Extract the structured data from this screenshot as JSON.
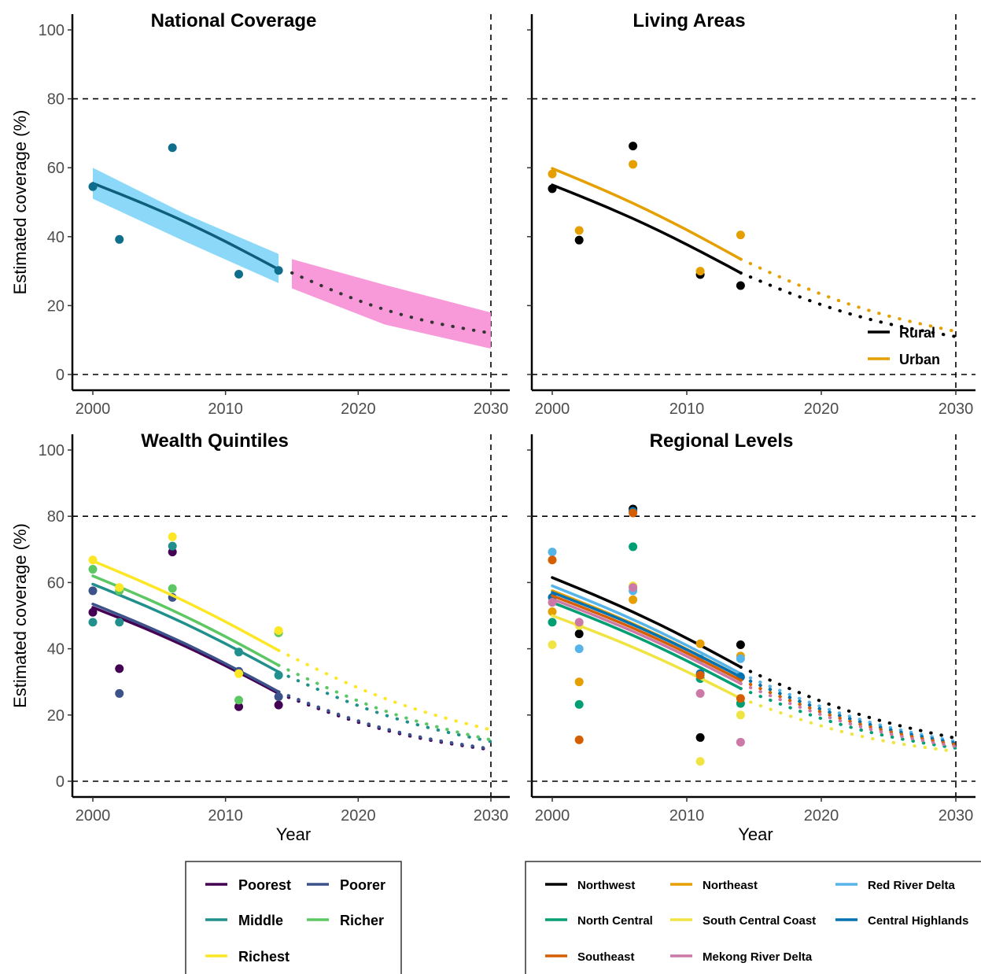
{
  "chart_data": [
    {
      "type": "line",
      "title": "National Coverage",
      "xlabel": "",
      "ylabel": "Estimated coverage (%)",
      "xlim": [
        2000,
        2030
      ],
      "ylim": [
        0,
        100
      ],
      "x_ticks": [
        "2000",
        "2010",
        "2020",
        "2030"
      ],
      "y_ticks": [
        "0",
        "20",
        "40",
        "60",
        "80",
        "100"
      ],
      "reference_lines": {
        "horizontal": [
          0,
          80
        ],
        "vertical": [
          2030
        ]
      },
      "grid": false,
      "colors": {
        "points": "#0e6e8c",
        "fit": "#0e5f7a",
        "fit_band": "#7fd4f7",
        "projection": "#333333",
        "projection_band": "#f78fd6"
      },
      "series": [
        {
          "points": [
            [
              2000,
              54.5
            ],
            [
              2002,
              39.2
            ],
            [
              2006,
              65.8
            ],
            [
              2011,
              29.1
            ],
            [
              2014,
              30.2
            ]
          ],
          "fit": [
            [
              2000,
              55.5
            ],
            [
              2014,
              30.5
            ]
          ],
          "fit_band": [
            [
              2000,
              51.0,
              60.0
            ],
            [
              2007,
              38.5,
              46.5
            ],
            [
              2014,
              26.5,
              35.0
            ]
          ],
          "projection": [
            [
              2015,
              29.5
            ],
            [
              2030,
              12.0
            ]
          ],
          "projection_band": [
            [
              2015,
              25.0,
              33.5
            ],
            [
              2022,
              14.5,
              26.0
            ],
            [
              2030,
              7.5,
              18.0
            ]
          ]
        }
      ]
    },
    {
      "type": "line",
      "title": "Living Areas",
      "xlabel": "",
      "ylabel": "",
      "xlim": [
        2000,
        2030
      ],
      "ylim": [
        0,
        100
      ],
      "x_ticks": [
        "2000",
        "2010",
        "2020",
        "2030"
      ],
      "y_ticks": [],
      "reference_lines": {
        "horizontal": [
          0,
          80
        ],
        "vertical": [
          2030
        ]
      },
      "grid": false,
      "legend_position": "bottom-right",
      "series": [
        {
          "name": "Rural",
          "color": "#000000",
          "points": [
            [
              2000,
              53.9
            ],
            [
              2002,
              39.0
            ],
            [
              2006,
              66.3
            ],
            [
              2011,
              29.0
            ],
            [
              2014,
              25.8
            ]
          ],
          "fit": [
            [
              2000,
              55.0
            ],
            [
              2014,
              29.5
            ]
          ],
          "projection": [
            [
              2014,
              29.5
            ],
            [
              2030,
              11.0
            ]
          ]
        },
        {
          "name": "Urban",
          "color": "#e69f00",
          "points": [
            [
              2000,
              58.2
            ],
            [
              2002,
              41.8
            ],
            [
              2006,
              61.0
            ],
            [
              2011,
              30.0
            ],
            [
              2014,
              40.5
            ]
          ],
          "fit": [
            [
              2000,
              59.8
            ],
            [
              2014,
              33.5
            ]
          ],
          "projection": [
            [
              2014,
              33.5
            ],
            [
              2030,
              12.5
            ]
          ]
        }
      ]
    },
    {
      "type": "line",
      "title": "Wealth Quintiles",
      "xlabel": "Year",
      "ylabel": "Estimated coverage (%)",
      "xlim": [
        2000,
        2030
      ],
      "ylim": [
        0,
        100
      ],
      "x_ticks": [
        "2000",
        "2010",
        "2020",
        "2030"
      ],
      "y_ticks": [
        "0",
        "20",
        "40",
        "60",
        "80",
        "100"
      ],
      "reference_lines": {
        "horizontal": [
          0,
          80
        ],
        "vertical": [
          2030
        ]
      },
      "grid": false,
      "legend_position": "bottom",
      "series": [
        {
          "name": "Poorest",
          "color": "#440154",
          "points": [
            [
              2000,
              51.0
            ],
            [
              2002,
              34.0
            ],
            [
              2006,
              69.2
            ],
            [
              2011,
              22.5
            ],
            [
              2014,
              23.0
            ]
          ],
          "fit": [
            [
              2000,
              52.5
            ],
            [
              2014,
              26.5
            ]
          ],
          "projection": [
            [
              2014,
              26.5
            ],
            [
              2030,
              9.5
            ]
          ]
        },
        {
          "name": "Poorer",
          "color": "#3b528b",
          "points": [
            [
              2000,
              57.5
            ],
            [
              2002,
              26.5
            ],
            [
              2006,
              55.5
            ],
            [
              2011,
              33.2
            ],
            [
              2014,
              25.5
            ]
          ],
          "fit": [
            [
              2000,
              53.5
            ],
            [
              2014,
              27.0
            ]
          ],
          "projection": [
            [
              2014,
              27.0
            ],
            [
              2030,
              9.8
            ]
          ]
        },
        {
          "name": "Middle",
          "color": "#21908c",
          "points": [
            [
              2000,
              48.0
            ],
            [
              2002,
              48.0
            ],
            [
              2006,
              71.0
            ],
            [
              2011,
              39.0
            ],
            [
              2014,
              32.0
            ]
          ],
          "fit": [
            [
              2000,
              59.5
            ],
            [
              2014,
              33.0
            ]
          ],
          "projection": [
            [
              2014,
              33.0
            ],
            [
              2030,
              12.0
            ]
          ]
        },
        {
          "name": "Richer",
          "color": "#5dc863",
          "points": [
            [
              2000,
              64.0
            ],
            [
              2002,
              57.5
            ],
            [
              2006,
              58.2
            ],
            [
              2011,
              24.5
            ],
            [
              2014,
              44.8
            ]
          ],
          "fit": [
            [
              2000,
              62.0
            ],
            [
              2014,
              35.0
            ]
          ],
          "projection": [
            [
              2014,
              35.0
            ],
            [
              2030,
              12.5
            ]
          ]
        },
        {
          "name": "Richest",
          "color": "#fde725",
          "points": [
            [
              2000,
              66.8
            ],
            [
              2002,
              58.5
            ],
            [
              2006,
              73.8
            ],
            [
              2011,
              32.5
            ],
            [
              2014,
              45.5
            ]
          ],
          "fit": [
            [
              2000,
              66.5
            ],
            [
              2014,
              39.5
            ]
          ],
          "projection": [
            [
              2014,
              39.5
            ],
            [
              2030,
              15.5
            ]
          ]
        }
      ]
    },
    {
      "type": "line",
      "title": "Regional Levels",
      "xlabel": "Year",
      "ylabel": "",
      "xlim": [
        2000,
        2030
      ],
      "ylim": [
        0,
        100
      ],
      "x_ticks": [
        "2000",
        "2010",
        "2020",
        "2030"
      ],
      "y_ticks": [],
      "reference_lines": {
        "horizontal": [
          0,
          80
        ],
        "vertical": [
          2030
        ]
      },
      "grid": false,
      "legend_position": "bottom",
      "series": [
        {
          "name": "Northwest",
          "color": "#000000",
          "points": [
            [
              2002,
              44.5
            ],
            [
              2006,
              82.2
            ],
            [
              2011,
              13.2
            ],
            [
              2014,
              41.2
            ]
          ],
          "fit": [
            [
              2000,
              61.5
            ],
            [
              2014,
              34.5
            ]
          ],
          "projection": [
            [
              2014,
              34.5
            ],
            [
              2030,
              13.0
            ]
          ]
        },
        {
          "name": "Northeast",
          "color": "#e69f00",
          "points": [
            [
              2000,
              51.2
            ],
            [
              2002,
              30.0
            ],
            [
              2006,
              54.8
            ],
            [
              2011,
              41.5
            ],
            [
              2014,
              37.8
            ]
          ],
          "fit": [
            [
              2000,
              57.5
            ],
            [
              2014,
              31.5
            ]
          ],
          "projection": [
            [
              2014,
              31.5
            ],
            [
              2030,
              11.5
            ]
          ]
        },
        {
          "name": "Red River Delta",
          "color": "#56b4e9",
          "points": [
            [
              2000,
              69.2
            ],
            [
              2002,
              40.0
            ],
            [
              2006,
              57.5
            ],
            [
              2011,
              37.0
            ],
            [
              2014,
              37.0
            ]
          ],
          "fit": [
            [
              2000,
              59.0
            ],
            [
              2014,
              32.5
            ]
          ],
          "projection": [
            [
              2014,
              32.5
            ],
            [
              2030,
              12.0
            ]
          ]
        },
        {
          "name": "North Central",
          "color": "#009e73",
          "points": [
            [
              2000,
              48.0
            ],
            [
              2002,
              23.2
            ],
            [
              2006,
              70.8
            ],
            [
              2011,
              31.0
            ],
            [
              2014,
              23.5
            ]
          ],
          "fit": [
            [
              2000,
              54.0
            ],
            [
              2014,
              28.0
            ]
          ],
          "projection": [
            [
              2014,
              28.0
            ],
            [
              2030,
              10.0
            ]
          ]
        },
        {
          "name": "South Central Coast",
          "color": "#f0e442",
          "points": [
            [
              2000,
              41.2
            ],
            [
              2002,
              47.0
            ],
            [
              2006,
              59.0
            ],
            [
              2011,
              6.0
            ],
            [
              2014,
              20.0
            ]
          ],
          "fit": [
            [
              2000,
              50.0
            ],
            [
              2014,
              25.0
            ]
          ],
          "projection": [
            [
              2014,
              25.0
            ],
            [
              2030,
              9.0
            ]
          ]
        },
        {
          "name": "Central Highlands",
          "color": "#0072b2",
          "points": [
            [
              2000,
              55.5
            ],
            [
              2006,
              81.5
            ],
            [
              2011,
              32.5
            ],
            [
              2014,
              31.5
            ]
          ],
          "fit": [
            [
              2000,
              57.0
            ],
            [
              2014,
              31.5
            ]
          ],
          "projection": [
            [
              2014,
              31.5
            ],
            [
              2030,
              11.5
            ]
          ]
        },
        {
          "name": "Southeast",
          "color": "#d55e00",
          "points": [
            [
              2000,
              66.8
            ],
            [
              2002,
              12.5
            ],
            [
              2006,
              81.0
            ],
            [
              2011,
              32.0
            ],
            [
              2014,
              25.0
            ]
          ],
          "fit": [
            [
              2000,
              56.0
            ],
            [
              2014,
              30.5
            ]
          ],
          "projection": [
            [
              2014,
              30.5
            ],
            [
              2030,
              11.0
            ]
          ]
        },
        {
          "name": "Mekong River Delta",
          "color": "#cc79a7",
          "points": [
            [
              2000,
              54.0
            ],
            [
              2002,
              48.0
            ],
            [
              2006,
              58.5
            ],
            [
              2011,
              26.5
            ],
            [
              2014,
              11.8
            ]
          ],
          "fit": [
            [
              2000,
              55.0
            ],
            [
              2014,
              29.5
            ]
          ],
          "projection": [
            [
              2014,
              29.5
            ],
            [
              2030,
              10.5
            ]
          ]
        }
      ]
    }
  ]
}
